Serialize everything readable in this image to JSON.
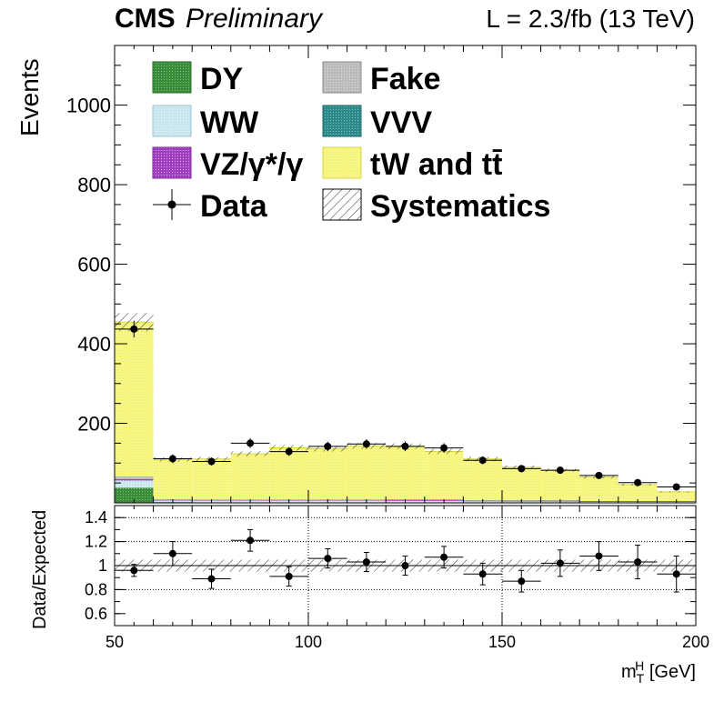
{
  "header": {
    "experiment": "CMS",
    "status": "Preliminary",
    "luminosity": "L = 2.3/fb (13 TeV)"
  },
  "colors": {
    "DY": "#3a8c3a",
    "WW": "#c8e6ee",
    "VZ": "#a040c0",
    "Fake": "#bbbbbb",
    "VVV": "#2e8a8a",
    "top": "#f5f57a",
    "data": "#000000"
  },
  "chart_data": [
    {
      "type": "bar",
      "stacked": true,
      "ylabel": "Events",
      "xlim": [
        50,
        200
      ],
      "ylim": [
        0,
        1150
      ],
      "yticks": [
        "200",
        "400",
        "600",
        "800",
        "1000"
      ],
      "bin_edges": [
        50,
        60,
        70,
        80,
        90,
        100,
        110,
        120,
        130,
        140,
        150,
        160,
        170,
        180,
        190,
        200
      ],
      "series": [
        {
          "name": "DY",
          "values": [
            38,
            2,
            1,
            1,
            1,
            1,
            1,
            1,
            1,
            1,
            0.5,
            0.5,
            0.5,
            0.5,
            0.5
          ]
        },
        {
          "name": "WW",
          "values": [
            18,
            4,
            4,
            4,
            4,
            4,
            4,
            4,
            4,
            3,
            3,
            3,
            2,
            2,
            2
          ]
        },
        {
          "name": "VZ/γ*/γ",
          "values": [
            4,
            1,
            1,
            1,
            1,
            1,
            1,
            2,
            2,
            1,
            1,
            1,
            1,
            1,
            1
          ]
        },
        {
          "name": "Fake",
          "values": [
            5,
            2,
            2,
            2,
            2,
            2,
            2,
            2,
            2,
            2,
            2,
            2,
            1,
            1,
            1
          ]
        },
        {
          "name": "VVV",
          "values": [
            0.5,
            0.2,
            0.2,
            0.2,
            0.2,
            0.2,
            0.2,
            0.2,
            0.2,
            0.2,
            0.2,
            0.2,
            0.2,
            0.2,
            0.2
          ]
        },
        {
          "name": "tW and tt̄",
          "values": [
            389,
            100,
            102,
            115,
            130,
            128,
            135,
            133,
            120,
            103,
            83,
            75,
            60,
            41,
            23
          ]
        }
      ],
      "systematics_band": {
        "name": "Systematics",
        "rel_uncertainty": 0.05
      },
      "data": {
        "name": "Data",
        "values": [
          437,
          111,
          104,
          150,
          129,
          142,
          148,
          142,
          138,
          107,
          86,
          82,
          69,
          51,
          40
        ],
        "errors": [
          21,
          11,
          10,
          12,
          11,
          12,
          12,
          12,
          12,
          10,
          9,
          9,
          8,
          7,
          6
        ]
      },
      "legend": {
        "placement": "top-left",
        "left_column": [
          "DY",
          "WW",
          "VZ/γ*/γ",
          "Data"
        ],
        "right_column": [
          "Fake",
          "VVV",
          "tW and tt̄",
          "Systematics"
        ]
      }
    },
    {
      "type": "scatter",
      "ylabel": "Data/Expected",
      "xlabel_main": "m",
      "xlabel_sub": "T",
      "xlabel_sup": "H",
      "xlabel_unit": " [GeV]",
      "xlim": [
        50,
        200
      ],
      "ylim": [
        0.5,
        1.5
      ],
      "xticks": [
        "50",
        "100",
        "150",
        "200"
      ],
      "yticks": [
        "0.6",
        "0.8",
        "1",
        "1.2",
        "1.4"
      ],
      "x": [
        55,
        65,
        75,
        85,
        95,
        105,
        115,
        125,
        135,
        145,
        155,
        165,
        175,
        185,
        195
      ],
      "values": [
        0.96,
        1.1,
        0.89,
        1.21,
        0.91,
        1.06,
        1.03,
        1.0,
        1.07,
        0.93,
        0.87,
        1.02,
        1.08,
        1.03,
        0.93
      ],
      "errors": [
        0.05,
        0.1,
        0.08,
        0.09,
        0.08,
        0.08,
        0.08,
        0.08,
        0.09,
        0.09,
        0.09,
        0.11,
        0.12,
        0.14,
        0.15
      ],
      "syst_band": [
        0.95,
        1.05
      ]
    }
  ]
}
